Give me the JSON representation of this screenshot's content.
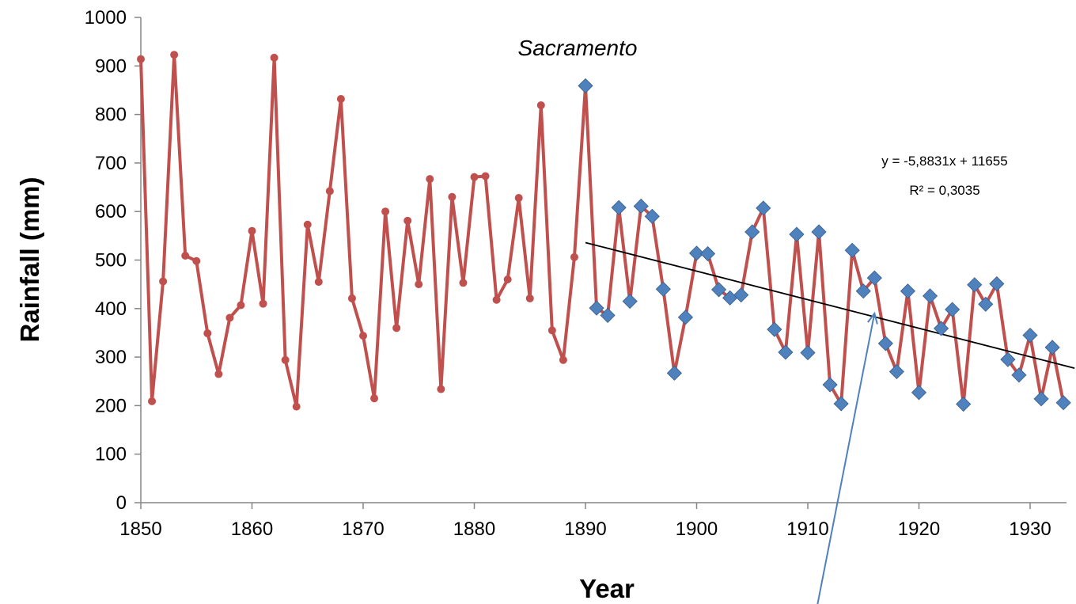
{
  "chart_data": {
    "type": "line",
    "title": "Sacramento",
    "xlabel": "Year",
    "ylabel": "Rainfall (mm)",
    "xlim": [
      1850,
      1933
    ],
    "ylim": [
      0,
      1000
    ],
    "x_ticks": [
      "1850",
      "1860",
      "1870",
      "1880",
      "1890",
      "1900",
      "1910",
      "1920",
      "1930"
    ],
    "y_ticks": [
      "0",
      "100",
      "200",
      "300",
      "400",
      "500",
      "600",
      "700",
      "800",
      "900",
      "1000"
    ],
    "grid": false,
    "legend": "none",
    "series": [
      {
        "color": "#C0504D",
        "marker": "circle",
        "x": [
          1850,
          1851,
          1852,
          1853,
          1854,
          1855,
          1856,
          1857,
          1858,
          1859,
          1860,
          1861,
          1862,
          1863,
          1864,
          1865,
          1866,
          1867,
          1868,
          1869,
          1870,
          1871,
          1872,
          1873,
          1874,
          1875,
          1876,
          1877,
          1878,
          1879,
          1880,
          1881,
          1882,
          1883,
          1884,
          1885,
          1886,
          1887,
          1888,
          1889,
          1890
        ],
        "y": [
          914,
          209,
          456,
          923,
          509,
          498,
          349,
          265,
          381,
          407,
          560,
          410,
          917,
          294,
          198,
          573,
          455,
          642,
          832,
          421,
          344,
          215,
          600,
          360,
          581,
          450,
          667,
          234,
          630,
          453,
          671,
          673,
          418,
          460,
          628,
          421,
          819,
          355,
          294,
          506,
          859
        ]
      },
      {
        "color": "#C0504D",
        "marker": "diamond",
        "marker_color": "#4F81BD",
        "x": [
          1890,
          1891,
          1892,
          1893,
          1894,
          1895,
          1896,
          1897,
          1898,
          1899,
          1900,
          1901,
          1902,
          1903,
          1904,
          1905,
          1906,
          1907,
          1908,
          1909,
          1910,
          1911,
          1912,
          1913,
          1914,
          1915,
          1916,
          1917,
          1918,
          1919,
          1920,
          1921,
          1922,
          1923,
          1924,
          1925,
          1926,
          1927,
          1928,
          1929,
          1930,
          1931,
          1932,
          1933
        ],
        "y": [
          859,
          401,
          386,
          608,
          415,
          611,
          590,
          440,
          267,
          382,
          514,
          513,
          439,
          422,
          428,
          558,
          607,
          357,
          310,
          553,
          309,
          558,
          243,
          204,
          520,
          436,
          463,
          328,
          270,
          436,
          227,
          426,
          359,
          398,
          203,
          449,
          409,
          451,
          295,
          263,
          345,
          214,
          320,
          206
        ]
      }
    ],
    "trendline": {
      "color": "#000000",
      "slope": -5.8831,
      "intercept": 11655,
      "x_range": [
        1890,
        1934
      ],
      "equation": "y = -5,8831x + 11655",
      "r_squared": "R² = 0,3035"
    },
    "arrow_annotation": {
      "color": "#4F81BD",
      "from": [
        1910.7,
        -230
      ],
      "to": [
        1916,
        390
      ]
    }
  }
}
